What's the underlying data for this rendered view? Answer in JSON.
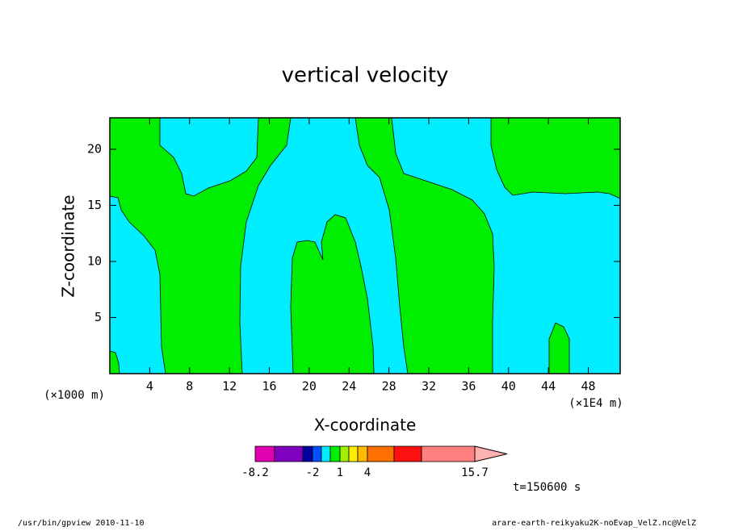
{
  "chart_data": {
    "type": "contour",
    "title": "vertical velocity",
    "x_label": "X-coordinate",
    "y_label": "Z-coordinate",
    "x_unit_left": "(×1000 m)",
    "x_unit_right": "(×1E4 m)",
    "xlim": [
      0,
      51.2
    ],
    "xticks": [
      4,
      8,
      12,
      16,
      20,
      24,
      28,
      32,
      36,
      40,
      44,
      48
    ],
    "ylim": [
      0,
      22.8
    ],
    "yticks": [
      5,
      10,
      15,
      20
    ],
    "colorbar": {
      "colors": [
        "#e000b0",
        "#8000c0",
        "#0000a0",
        "#0050ff",
        "#00eeff",
        "#00ee00",
        "#a0ee00",
        "#ffee00",
        "#ffbb00",
        "#ff7000",
        "#ff1010",
        "#ff8080",
        "#ffb0b0"
      ],
      "ticks": [
        -8.2,
        -2,
        1,
        4,
        15.7
      ]
    },
    "annotation": "t=150600 s",
    "footer_left": "/usr/bin/gpview   2010-11-10",
    "footer_right": "arare-earth-reikyaku2K-noEvap_VelZ.nc@VelZ"
  }
}
